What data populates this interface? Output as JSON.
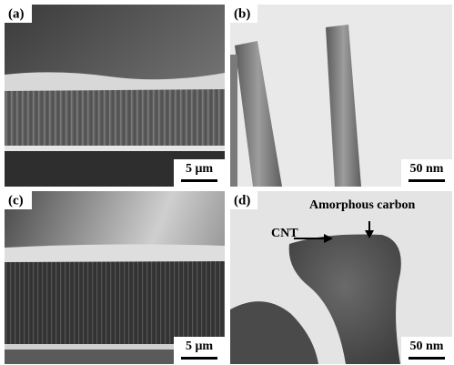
{
  "panels": [
    {
      "label": "(a)",
      "scale_bar": "5 μm"
    },
    {
      "label": "(b)",
      "scale_bar": "50 nm"
    },
    {
      "label": "(c)",
      "scale_bar": "5 μm"
    },
    {
      "label": "(d)",
      "scale_bar": "50 nm"
    }
  ],
  "annotations": {
    "cnt": "CNT",
    "amorphous_carbon": "Amorphous carbon"
  }
}
